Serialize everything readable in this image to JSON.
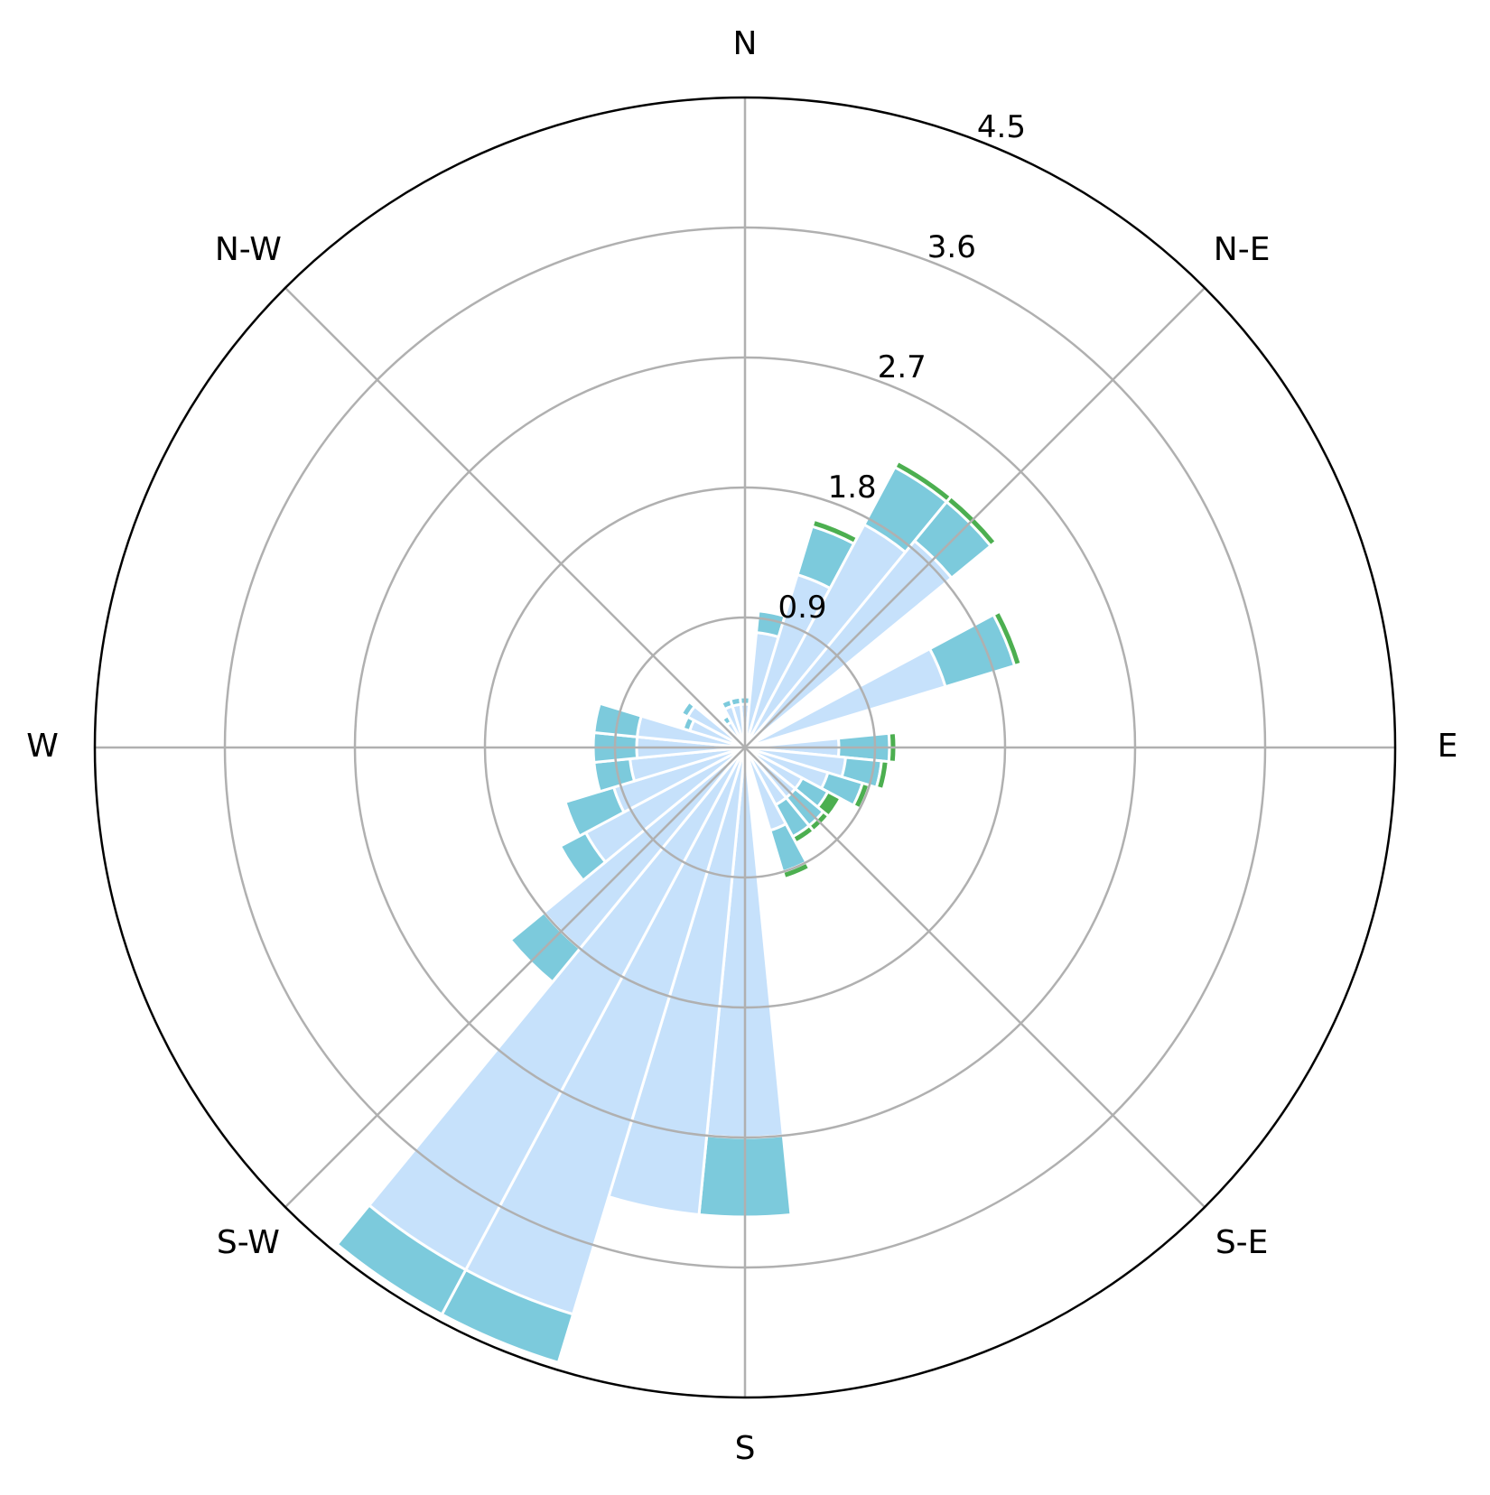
{
  "chart_data": {
    "type": "windrose",
    "title": "",
    "direction_labels": [
      "N",
      "N-E",
      "E",
      "S-E",
      "S",
      "S-W",
      "W",
      "N-W"
    ],
    "radial_ticks": [
      "0.9",
      "1.8",
      "2.7",
      "3.6",
      "4.5"
    ],
    "radial_tick_values": [
      0.9,
      1.8,
      2.7,
      3.6,
      4.5
    ],
    "rmax": 4.5,
    "grid": true,
    "colors": {
      "layer1": "#c6e1fb",
      "layer2": "#7ccadc",
      "layer3": "#4caf50",
      "grid": "#b0b0b0",
      "frame": "#000000",
      "edge": "#ffffff"
    },
    "sectors": [
      {
        "angle_deg": 0,
        "cum": [
          0.3,
          0.35
        ]
      },
      {
        "angle_deg": 11.25,
        "cum": [
          0.8,
          0.95
        ]
      },
      {
        "angle_deg": 22.5,
        "cum": [
          1.25,
          1.6,
          1.65
        ]
      },
      {
        "angle_deg": 33.75,
        "cum": [
          1.75,
          2.2,
          2.25
        ]
      },
      {
        "angle_deg": 45,
        "cum": [
          1.85,
          2.2,
          2.25
        ]
      },
      {
        "angle_deg": 56.25,
        "cum": null
      },
      {
        "angle_deg": 67.5,
        "cum": [
          1.45,
          1.95,
          2.0
        ]
      },
      {
        "angle_deg": 78.75,
        "cum": null
      },
      {
        "angle_deg": 90,
        "cum": [
          0.65,
          1.0,
          1.05
        ]
      },
      {
        "angle_deg": 101.25,
        "cum": [
          0.7,
          0.95,
          1.0
        ]
      },
      {
        "angle_deg": 112.5,
        "cum": [
          0.6,
          0.85,
          0.9
        ]
      },
      {
        "angle_deg": 123.75,
        "cum": [
          0.45,
          0.65,
          0.75
        ]
      },
      {
        "angle_deg": 135,
        "cum": [
          0.45,
          0.7,
          0.75
        ]
      },
      {
        "angle_deg": 146.25,
        "cum": [
          0.45,
          0.7,
          0.75
        ]
      },
      {
        "angle_deg": 157.5,
        "cum": [
          0.6,
          0.9,
          0.95
        ]
      },
      {
        "angle_deg": 168.75,
        "cum": null
      },
      {
        "angle_deg": 180,
        "cum": [
          2.7,
          3.25
        ]
      },
      {
        "angle_deg": 191.25,
        "cum": [
          3.25,
          3.25
        ]
      },
      {
        "angle_deg": 202.5,
        "cum": [
          4.1,
          4.45
        ]
      },
      {
        "angle_deg": 213.75,
        "cum": [
          4.1,
          4.45
        ]
      },
      {
        "angle_deg": 225,
        "cum": [
          1.8,
          2.1
        ]
      },
      {
        "angle_deg": 236.25,
        "cum": [
          1.25,
          1.45
        ]
      },
      {
        "angle_deg": 247.5,
        "cum": [
          0.95,
          1.3
        ]
      },
      {
        "angle_deg": 258.75,
        "cum": [
          0.8,
          1.05
        ]
      },
      {
        "angle_deg": 270,
        "cum": [
          0.75,
          1.05
        ]
      },
      {
        "angle_deg": 281.25,
        "cum": [
          0.75,
          1.05
        ]
      },
      {
        "angle_deg": 292.5,
        "cum": [
          0.4,
          0.45
        ]
      },
      {
        "angle_deg": 303.75,
        "cum": [
          0.45,
          0.5
        ]
      },
      {
        "angle_deg": 315,
        "cum": [
          0.1,
          0.15
        ]
      },
      {
        "angle_deg": 326.25,
        "cum": [
          0.2,
          0.25
        ]
      },
      {
        "angle_deg": 337.5,
        "cum": [
          0.3,
          0.35
        ]
      },
      {
        "angle_deg": 348.75,
        "cum": [
          0.3,
          0.35
        ]
      }
    ]
  }
}
